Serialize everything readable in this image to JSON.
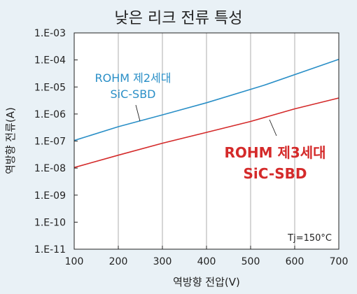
{
  "chart_data": {
    "type": "line",
    "title": "낮은 리크 전류 특성",
    "xlabel": "역방향 전압(V)",
    "ylabel": "역방향 전류(A)",
    "xlim": [
      100,
      700
    ],
    "ylim": [
      1e-11,
      0.001
    ],
    "yscale": "log",
    "x_ticks": [
      "100",
      "200",
      "300",
      "400",
      "500",
      "600",
      "700"
    ],
    "y_ticks": [
      "1.E-11",
      "1.E-10",
      "1.E-09",
      "1.E-08",
      "1.E-07",
      "1.E-06",
      "1.E-05",
      "1.E-04",
      "1.E-03"
    ],
    "annotation": "Tj=150°C",
    "grid": "vertical",
    "series": [
      {
        "name_lines": [
          "ROHM 제2세대",
          "SiC-SBD"
        ],
        "color": "#2a8fc7",
        "x": [
          100,
          200,
          300,
          400,
          530,
          700
        ],
        "y": [
          1.05e-07,
          3.4e-07,
          9.3e-07,
          2.6e-06,
          1.15e-05,
          0.000105
        ]
      },
      {
        "name_lines": [
          "ROHM 제3세대",
          "SiC-SBD"
        ],
        "color": "#d42a2a",
        "x": [
          100,
          200,
          300,
          400,
          500,
          600,
          700
        ],
        "y": [
          1.05e-08,
          3e-08,
          8.3e-08,
          2.1e-07,
          5.3e-07,
          1.55e-06,
          3.9e-06
        ]
      }
    ]
  }
}
